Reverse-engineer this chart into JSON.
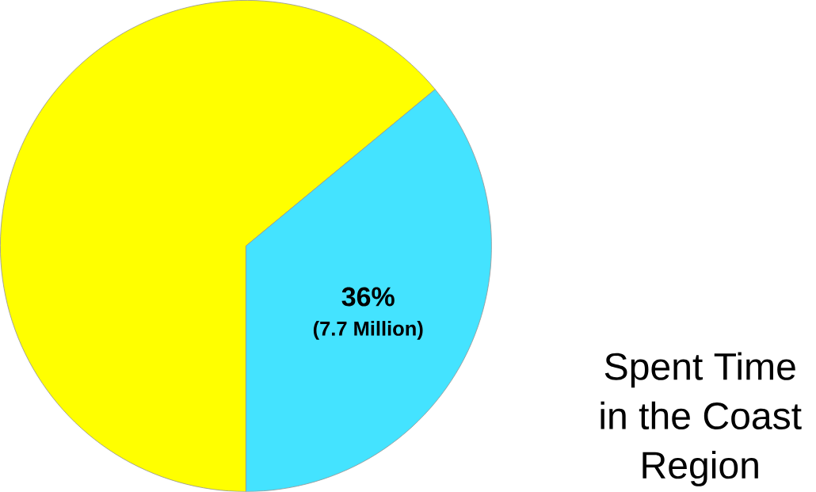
{
  "chart_data": {
    "type": "pie",
    "categories": [
      null,
      "Spent Time in the Coast Region"
    ],
    "values": [
      64,
      36
    ],
    "colors": [
      "#ffff00",
      "#44e3ff"
    ],
    "value_labels": [
      null,
      "36%"
    ],
    "annotations": [
      "(7.7 Million)"
    ]
  }
}
